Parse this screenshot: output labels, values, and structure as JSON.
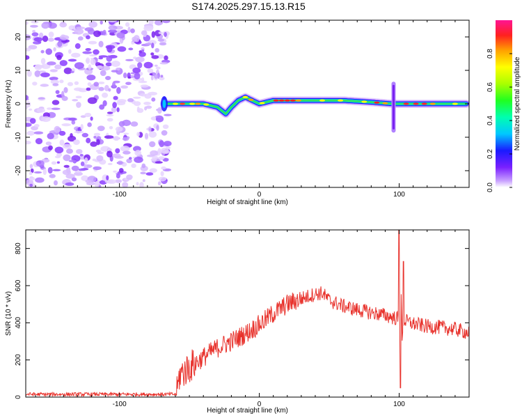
{
  "title": "S174.2025.297.15.13.R15",
  "chart_data": [
    {
      "type": "heatmap",
      "name": "spectrogram",
      "xlabel": "Height of straight line (km)",
      "ylabel": "Frequency (Hz)",
      "xlim": [
        -167,
        150
      ],
      "ylim": [
        -25,
        25
      ],
      "xticks": [
        -100,
        0,
        100
      ],
      "yticks": [
        -20,
        -10,
        0,
        10,
        20
      ],
      "noise_region_x": [
        -167,
        -68
      ],
      "signal_ridge": {
        "x": [
          -68,
          -60,
          -50,
          -40,
          -30,
          -24,
          -20,
          -15,
          -10,
          -5,
          0,
          10,
          20,
          40,
          60,
          80,
          95,
          100,
          110,
          130,
          148
        ],
        "y": [
          0,
          0,
          0,
          0,
          -1,
          -3,
          -1,
          1,
          2,
          1,
          0,
          1,
          1,
          1,
          1,
          0.5,
          0,
          0,
          0,
          0,
          0
        ]
      },
      "spike_x": 96,
      "spike_range": [
        -8,
        6
      ]
    },
    {
      "type": "colorbar",
      "label": "Normalized spectral amplitude",
      "range": [
        0,
        1
      ],
      "ticks": [
        "0.0",
        "0.2",
        "0.4",
        "0.6",
        "0.8"
      ],
      "tick_values": [
        0.0,
        0.2,
        0.4,
        0.6,
        0.8
      ]
    },
    {
      "type": "line",
      "name": "snr",
      "xlabel": "Height of straight line (km)",
      "ylabel": "SNR (10 * v/v)",
      "xlim": [
        -167,
        150
      ],
      "ylim": [
        0,
        900
      ],
      "xticks": [
        -100,
        0,
        100
      ],
      "yticks": [
        0,
        200,
        400,
        600,
        800
      ],
      "color": "#e8322c",
      "trend_x": [
        -167,
        -59,
        -57,
        -50,
        -40,
        -30,
        -20,
        -10,
        0,
        10,
        20,
        30,
        40,
        45,
        50,
        60,
        70,
        80,
        90,
        100,
        110,
        120,
        130,
        140,
        150
      ],
      "trend_y": [
        15,
        15,
        120,
        160,
        215,
        265,
        300,
        340,
        390,
        450,
        500,
        530,
        555,
        560,
        520,
        490,
        470,
        455,
        440,
        420,
        395,
        380,
        375,
        365,
        345
      ],
      "features": [
        {
          "x": 100,
          "y": 900
        },
        {
          "x": 101,
          "y": 50
        },
        {
          "x": 103,
          "y": 730
        }
      ]
    }
  ]
}
